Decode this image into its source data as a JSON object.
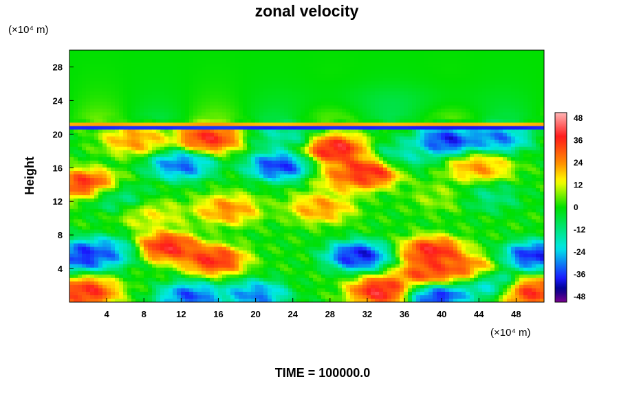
{
  "chart_data": {
    "type": "heatmap",
    "title": "zonal velocity",
    "ylabel": "Height",
    "xlabel": "",
    "x_unit": "(×10⁴ m)",
    "y_unit": "(×10⁴ m)",
    "footer": "TIME = 100000.0",
    "xlim": [
      0,
      51
    ],
    "ylim": [
      0,
      30
    ],
    "x_ticks": [
      "4",
      "8",
      "12",
      "16",
      "20",
      "24",
      "28",
      "32",
      "36",
      "40",
      "44",
      "48"
    ],
    "y_ticks": [
      "4",
      "8",
      "12",
      "16",
      "20",
      "24",
      "28"
    ],
    "colorbar": {
      "range": [
        -51,
        51
      ],
      "ticks": [
        "48",
        "36",
        "24",
        "12",
        "0",
        "-12",
        "-24",
        "-36",
        "-48"
      ],
      "colors": {
        "max": "#ffb6b6",
        "high": "#ff1a1a",
        "warm": "#ff8c00",
        "mid": "#ffff00",
        "zero": "#00e000",
        "cool": "#00e8e8",
        "low": "#1a1aff",
        "deep": "#00008b",
        "min": "#7a0090"
      }
    },
    "features": [
      {
        "x": 1.5,
        "y": 5.5,
        "v": -50
      },
      {
        "x": 4,
        "y": 6,
        "v": -35
      },
      {
        "x": 1.8,
        "y": 1.2,
        "v": 48
      },
      {
        "x": 10.5,
        "y": 6.6,
        "v": 50
      },
      {
        "x": 15.5,
        "y": 5.0,
        "v": 48
      },
      {
        "x": 13,
        "y": 0.6,
        "v": -45
      },
      {
        "x": 20,
        "y": 0.8,
        "v": -40
      },
      {
        "x": 31,
        "y": 5.5,
        "v": -52
      },
      {
        "x": 33.5,
        "y": 1.3,
        "v": 52
      },
      {
        "x": 39,
        "y": 6.0,
        "v": 50
      },
      {
        "x": 38.5,
        "y": 3.2,
        "v": 45
      },
      {
        "x": 42.5,
        "y": 3.8,
        "v": 40
      },
      {
        "x": 39.5,
        "y": 0.9,
        "v": -52
      },
      {
        "x": 45,
        "y": 2.2,
        "v": -30
      },
      {
        "x": 50,
        "y": 5.5,
        "v": -50
      },
      {
        "x": 49.5,
        "y": 1.2,
        "v": 48
      },
      {
        "x": 17,
        "y": 11,
        "v": 32
      },
      {
        "x": 9,
        "y": 10.3,
        "v": 18
      },
      {
        "x": 27,
        "y": 11.2,
        "v": 30
      },
      {
        "x": 1.8,
        "y": 14.0,
        "v": 48
      },
      {
        "x": 5,
        "y": 12.5,
        "v": -15
      },
      {
        "x": 12,
        "y": 16.3,
        "v": -42
      },
      {
        "x": 22.5,
        "y": 16.2,
        "v": -48
      },
      {
        "x": 28.5,
        "y": 18.2,
        "v": 52
      },
      {
        "x": 32,
        "y": 15.5,
        "v": 52
      },
      {
        "x": 30,
        "y": 14.8,
        "v": 30
      },
      {
        "x": 44,
        "y": 16.0,
        "v": 30
      },
      {
        "x": 15,
        "y": 19.5,
        "v": 48
      },
      {
        "x": 7,
        "y": 19.3,
        "v": 30
      },
      {
        "x": 40.5,
        "y": 19.2,
        "v": -50
      },
      {
        "x": 46,
        "y": 19.5,
        "v": -40
      },
      {
        "x": 36,
        "y": 17.5,
        "v": -20
      },
      {
        "x": 23,
        "y": 19.8,
        "v": -20
      },
      {
        "x": 40,
        "y": 12.5,
        "v": 10
      },
      {
        "x": 45,
        "y": 12.5,
        "v": -15
      }
    ],
    "top_layer": {
      "y_range": [
        21,
        30
      ],
      "value": 0
    },
    "stripe": [
      {
        "y": 20.8,
        "v": -40
      },
      {
        "y": 21.2,
        "v": 25
      }
    ]
  }
}
